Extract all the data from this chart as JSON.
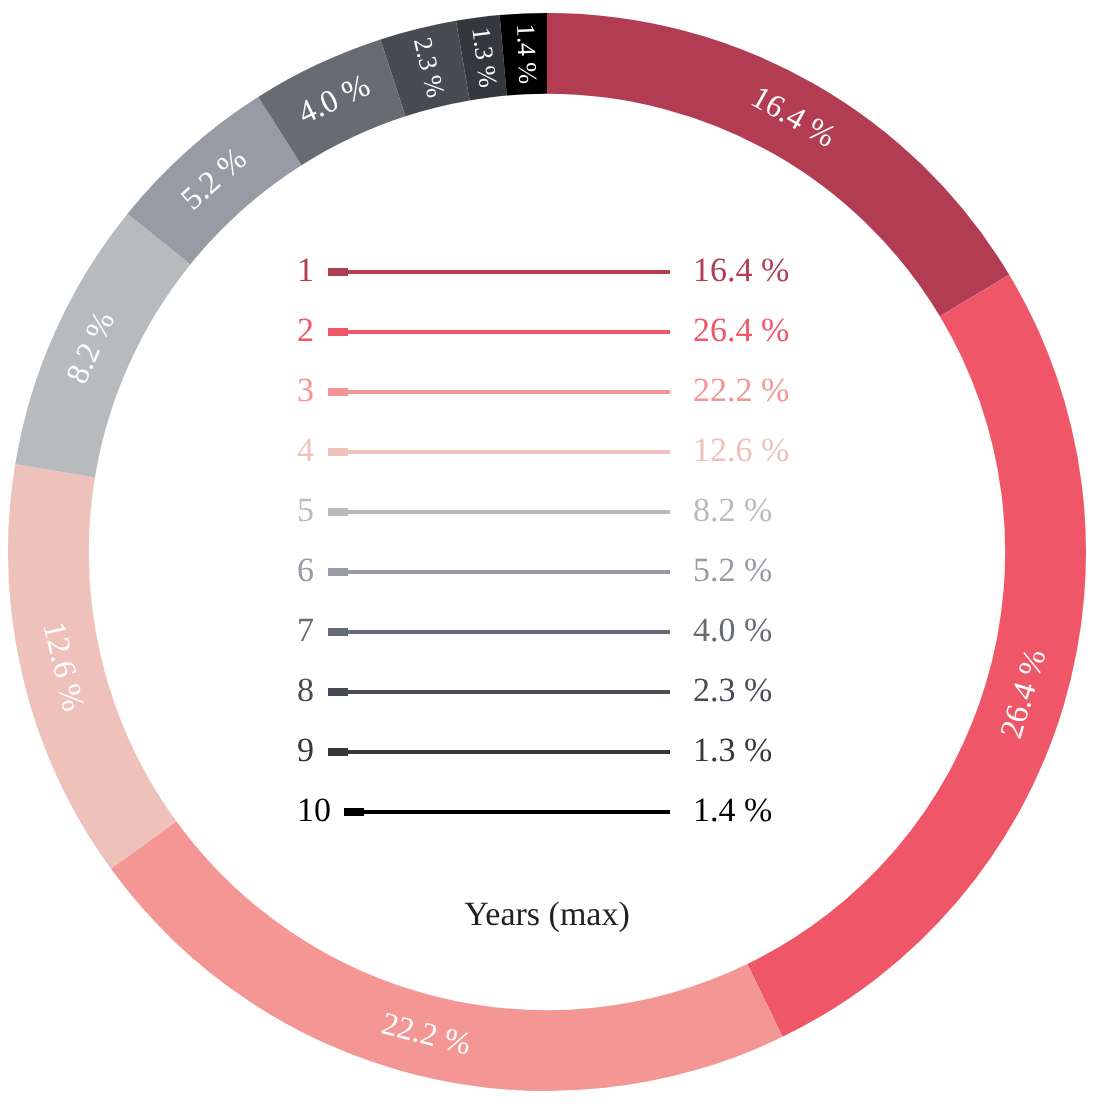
{
  "chart_data": {
    "type": "donut",
    "legend_title": "Years (max)",
    "legend": "center",
    "categories": [
      "1",
      "2",
      "3",
      "4",
      "5",
      "6",
      "7",
      "8",
      "9",
      "10"
    ],
    "values": [
      16.4,
      26.4,
      22.2,
      12.6,
      8.2,
      5.2,
      4.0,
      2.3,
      1.3,
      1.4
    ],
    "value_labels": [
      "16.4 %",
      "26.4 %",
      "22.2 %",
      "12.6 %",
      "8.2 %",
      "5.2 %",
      "4.0 %",
      "2.3 %",
      "1.3 %",
      "1.4 %"
    ],
    "colors": [
      "#b23c52",
      "#ef5769",
      "#f49693",
      "#eec1bb",
      "#b8bbbd",
      "#979ca4",
      "#676b72",
      "#484b51",
      "#34373b",
      "#000000"
    ]
  }
}
